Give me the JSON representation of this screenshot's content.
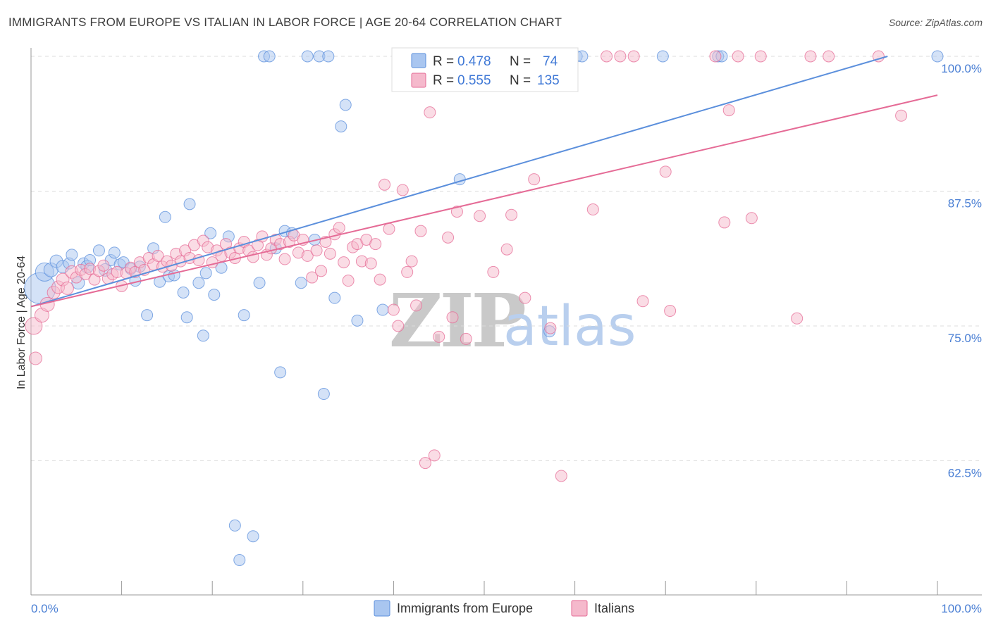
{
  "title": "IMMIGRANTS FROM EUROPE VS ITALIAN IN LABOR FORCE | AGE 20-64 CORRELATION CHART",
  "source": "Source: ZipAtlas.com",
  "watermark": {
    "zip": "ZIP",
    "atlas": "atlas"
  },
  "chart_data": {
    "type": "scatter",
    "xlabel": "",
    "ylabel": "In Labor Force | Age 20-64",
    "xlim": [
      0,
      100
    ],
    "ylim": [
      50,
      102
    ],
    "x_tick_labels": {
      "left": "0.0%",
      "right": "100.0%"
    },
    "y_ticks": [
      {
        "value": 100,
        "label": "100.0%"
      },
      {
        "value": 87.5,
        "label": "87.5%"
      },
      {
        "value": 75,
        "label": "75.0%"
      },
      {
        "value": 62.5,
        "label": "62.5%"
      }
    ],
    "grid": "horizontal dashed",
    "legend_position": "bottom-center",
    "stats": [
      {
        "r_label": "R = ",
        "r": "0.478",
        "n_label": "N = ",
        "n": "74"
      },
      {
        "r_label": "R = ",
        "r": "0.555",
        "n_label": "N = ",
        "n": "135"
      }
    ],
    "series": [
      {
        "name": "Immigrants from Europe",
        "color": "#5b8fdc",
        "fill": "#a9c6f0",
        "trend": {
          "x": [
            0,
            94.5
          ],
          "y": [
            76.8,
            100
          ]
        },
        "points": [
          [
            1.0,
            78.5,
            22
          ],
          [
            1.5,
            80.0,
            13
          ],
          [
            2.2,
            80.2,
            10
          ],
          [
            2.8,
            81.0,
            9
          ],
          [
            3.5,
            80.5,
            9
          ],
          [
            4.2,
            80.8,
            8
          ],
          [
            4.5,
            81.6,
            8
          ],
          [
            5.2,
            79.0,
            9
          ],
          [
            5.8,
            80.8,
            8
          ],
          [
            6.2,
            80.5,
            9
          ],
          [
            6.5,
            81.1,
            8
          ],
          [
            7.5,
            82.0,
            8
          ],
          [
            8.2,
            80.2,
            9
          ],
          [
            8.8,
            81.1,
            8
          ],
          [
            9.2,
            81.8,
            8
          ],
          [
            9.8,
            80.7,
            8
          ],
          [
            10.2,
            80.9,
            8
          ],
          [
            11.0,
            80.3,
            8
          ],
          [
            11.5,
            79.2,
            8
          ],
          [
            12.0,
            80.5,
            8
          ],
          [
            12.8,
            76.0,
            8
          ],
          [
            13.5,
            82.2,
            8
          ],
          [
            14.2,
            79.1,
            8
          ],
          [
            14.8,
            85.1,
            8
          ],
          [
            15.2,
            79.6,
            8
          ],
          [
            15.8,
            79.7,
            8
          ],
          [
            16.8,
            78.1,
            8
          ],
          [
            17.2,
            75.8,
            8
          ],
          [
            17.5,
            86.3,
            8
          ],
          [
            18.5,
            79.0,
            8
          ],
          [
            19.0,
            74.1,
            8
          ],
          [
            19.3,
            79.9,
            8
          ],
          [
            19.8,
            83.6,
            8
          ],
          [
            20.2,
            77.9,
            8
          ],
          [
            21.0,
            80.4,
            8
          ],
          [
            21.8,
            83.3,
            8
          ],
          [
            22.5,
            56.5,
            8
          ],
          [
            23.0,
            53.3,
            8
          ],
          [
            23.5,
            76.0,
            8
          ],
          [
            24.5,
            55.5,
            8
          ],
          [
            25.2,
            79.0,
            8
          ],
          [
            25.7,
            100.0,
            8
          ],
          [
            26.3,
            100.0,
            8
          ],
          [
            27.0,
            82.2,
            8
          ],
          [
            27.5,
            70.7,
            8
          ],
          [
            28.0,
            83.8,
            8
          ],
          [
            28.8,
            83.6,
            8
          ],
          [
            29.8,
            79.0,
            8
          ],
          [
            30.5,
            100.0,
            8
          ],
          [
            31.3,
            83.0,
            8
          ],
          [
            31.8,
            100.0,
            8
          ],
          [
            32.3,
            68.7,
            8
          ],
          [
            32.8,
            100.0,
            8
          ],
          [
            33.5,
            77.6,
            8
          ],
          [
            34.2,
            93.5,
            8
          ],
          [
            34.7,
            95.5,
            8
          ],
          [
            36.0,
            75.5,
            8
          ],
          [
            38.8,
            76.5,
            8
          ],
          [
            47.3,
            88.6,
            8
          ],
          [
            57.2,
            74.5,
            8
          ],
          [
            59.7,
            100.0,
            8
          ],
          [
            60.2,
            100.0,
            8
          ],
          [
            60.8,
            100.0,
            8
          ],
          [
            69.7,
            100.0,
            8
          ],
          [
            75.8,
            100.0,
            8
          ],
          [
            76.2,
            100.0,
            8
          ],
          [
            100,
            100,
            8
          ]
        ]
      },
      {
        "name": "Italians",
        "color": "#e56b96",
        "fill": "#f5b9cc",
        "trend": {
          "x": [
            0,
            100
          ],
          "y": [
            76.8,
            96.4
          ]
        },
        "points": [
          [
            0.3,
            75.0,
            12
          ],
          [
            0.5,
            72.0,
            9
          ],
          [
            1.2,
            76.0,
            10
          ],
          [
            1.8,
            77.0,
            10
          ],
          [
            2.5,
            78.1,
            9
          ],
          [
            3.0,
            78.6,
            9
          ],
          [
            3.5,
            79.3,
            9
          ],
          [
            4.0,
            78.5,
            9
          ],
          [
            4.5,
            80.0,
            9
          ],
          [
            5.0,
            79.5,
            8
          ],
          [
            5.5,
            80.2,
            8
          ],
          [
            6.0,
            79.8,
            8
          ],
          [
            6.5,
            80.3,
            8
          ],
          [
            7.0,
            79.3,
            8
          ],
          [
            7.5,
            80.1,
            8
          ],
          [
            8.0,
            80.6,
            8
          ],
          [
            8.5,
            79.4,
            8
          ],
          [
            9.0,
            79.8,
            8
          ],
          [
            9.5,
            80.0,
            8
          ],
          [
            10.0,
            78.7,
            8
          ],
          [
            10.5,
            79.9,
            8
          ],
          [
            11.0,
            80.4,
            8
          ],
          [
            11.5,
            80.0,
            8
          ],
          [
            12.0,
            80.9,
            8
          ],
          [
            12.5,
            80.2,
            8
          ],
          [
            13.0,
            81.3,
            8
          ],
          [
            13.5,
            80.7,
            8
          ],
          [
            14.0,
            81.5,
            8
          ],
          [
            14.5,
            80.5,
            8
          ],
          [
            15.0,
            81.0,
            8
          ],
          [
            15.5,
            80.6,
            8
          ],
          [
            16.0,
            81.7,
            8
          ],
          [
            16.5,
            81.0,
            8
          ],
          [
            17.0,
            82.0,
            8
          ],
          [
            17.5,
            81.3,
            8
          ],
          [
            18.0,
            82.5,
            8
          ],
          [
            18.5,
            81.1,
            8
          ],
          [
            19.0,
            82.9,
            8
          ],
          [
            19.5,
            82.3,
            8
          ],
          [
            20.0,
            80.9,
            8
          ],
          [
            20.5,
            82.0,
            8
          ],
          [
            21.0,
            81.5,
            8
          ],
          [
            21.5,
            82.6,
            8
          ],
          [
            22.0,
            81.8,
            8
          ],
          [
            22.5,
            81.3,
            8
          ],
          [
            23.0,
            82.2,
            8
          ],
          [
            23.5,
            82.8,
            8
          ],
          [
            24.0,
            82.0,
            8
          ],
          [
            24.5,
            81.4,
            8
          ],
          [
            25.0,
            82.5,
            8
          ],
          [
            25.5,
            83.3,
            8
          ],
          [
            26.0,
            81.6,
            8
          ],
          [
            26.5,
            82.2,
            8
          ],
          [
            27.0,
            83.0,
            8
          ],
          [
            27.5,
            82.6,
            8
          ],
          [
            28.0,
            81.2,
            8
          ],
          [
            28.5,
            82.8,
            8
          ],
          [
            29.0,
            83.4,
            8
          ],
          [
            29.5,
            81.8,
            8
          ],
          [
            30.0,
            83.0,
            8
          ],
          [
            30.5,
            81.5,
            8
          ],
          [
            31.0,
            79.5,
            8
          ],
          [
            31.5,
            82.0,
            8
          ],
          [
            32.0,
            80.1,
            8
          ],
          [
            32.5,
            82.8,
            8
          ],
          [
            33.0,
            81.7,
            8
          ],
          [
            33.5,
            83.5,
            8
          ],
          [
            34.0,
            84.1,
            8
          ],
          [
            34.5,
            80.9,
            8
          ],
          [
            35.0,
            79.2,
            8
          ],
          [
            35.5,
            82.3,
            8
          ],
          [
            36.0,
            82.6,
            8
          ],
          [
            36.5,
            81.0,
            8
          ],
          [
            37.0,
            83.0,
            8
          ],
          [
            37.5,
            80.8,
            8
          ],
          [
            38.0,
            82.6,
            8
          ],
          [
            38.5,
            79.3,
            8
          ],
          [
            39.0,
            88.1,
            8
          ],
          [
            39.5,
            84.0,
            8
          ],
          [
            40.0,
            76.5,
            8
          ],
          [
            40.5,
            75.0,
            8
          ],
          [
            41.0,
            87.6,
            8
          ],
          [
            41.5,
            80.0,
            8
          ],
          [
            42.0,
            81.0,
            8
          ],
          [
            42.5,
            76.9,
            8
          ],
          [
            43.0,
            83.8,
            8
          ],
          [
            43.5,
            62.3,
            8
          ],
          [
            44.0,
            94.8,
            8
          ],
          [
            44.5,
            63.0,
            8
          ],
          [
            45.0,
            74.0,
            8
          ],
          [
            46.0,
            83.2,
            8
          ],
          [
            46.5,
            75.8,
            8
          ],
          [
            47.0,
            85.6,
            8
          ],
          [
            48.0,
            73.8,
            8
          ],
          [
            49.5,
            85.2,
            8
          ],
          [
            51.0,
            80.0,
            8
          ],
          [
            52.5,
            82.1,
            8
          ],
          [
            53.0,
            85.3,
            8
          ],
          [
            54.5,
            77.6,
            8
          ],
          [
            55.5,
            88.6,
            8
          ],
          [
            57.3,
            74.8,
            8
          ],
          [
            58.5,
            61.1,
            8
          ],
          [
            62.0,
            85.8,
            8
          ],
          [
            63.5,
            100.0,
            8
          ],
          [
            65.0,
            100.0,
            8
          ],
          [
            66.5,
            100.0,
            8
          ],
          [
            67.5,
            77.3,
            8
          ],
          [
            70.0,
            89.3,
            8
          ],
          [
            70.5,
            76.4,
            8
          ],
          [
            75.5,
            100.0,
            8
          ],
          [
            76.5,
            84.6,
            8
          ],
          [
            77.0,
            95.0,
            8
          ],
          [
            78.0,
            100.0,
            8
          ],
          [
            79.5,
            85.0,
            8
          ],
          [
            80.5,
            100.0,
            8
          ],
          [
            84.5,
            75.7,
            8
          ],
          [
            86.0,
            100.0,
            8
          ],
          [
            88.0,
            100.0,
            8
          ],
          [
            93.5,
            100.0,
            8
          ],
          [
            96.0,
            94.5,
            8
          ]
        ]
      }
    ]
  }
}
